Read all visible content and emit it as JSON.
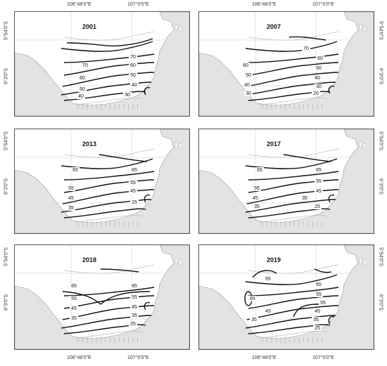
{
  "lon_labels": [
    "106°48'0\"E",
    "107°0'0\"E"
  ],
  "lat_labels": [
    "5°54'0\"S",
    "6°3'0\"S"
  ],
  "panels": [
    {
      "year": "2001",
      "contour_labels": [
        "70",
        "70",
        "60",
        "60",
        "50",
        "50",
        "40",
        "40",
        "30"
      ]
    },
    {
      "year": "2007",
      "contour_labels": [
        "70",
        "60",
        "60",
        "50",
        "50",
        "40",
        "40",
        "30",
        "30",
        "20"
      ]
    },
    {
      "year": "2013",
      "contour_labels": [
        "65",
        "65",
        "55",
        "55",
        "45",
        "45",
        "35",
        "25"
      ]
    },
    {
      "year": "2017",
      "contour_labels": [
        "65",
        "65",
        "55",
        "55",
        "45",
        "45",
        "35",
        "35",
        "25"
      ]
    },
    {
      "year": "2018",
      "contour_labels": [
        "65",
        "65",
        "55",
        "55",
        "45",
        "45",
        "35",
        "35",
        "25"
      ]
    },
    {
      "year": "2019",
      "contour_labels": [
        "65",
        "65",
        "65",
        "55",
        "55",
        "45",
        "45",
        "35",
        "35",
        "25"
      ]
    }
  ],
  "colors": {
    "land": "#e3e3e3",
    "sea": "#ffffff",
    "contour": "#111111",
    "grid": "#c8c8c8"
  }
}
